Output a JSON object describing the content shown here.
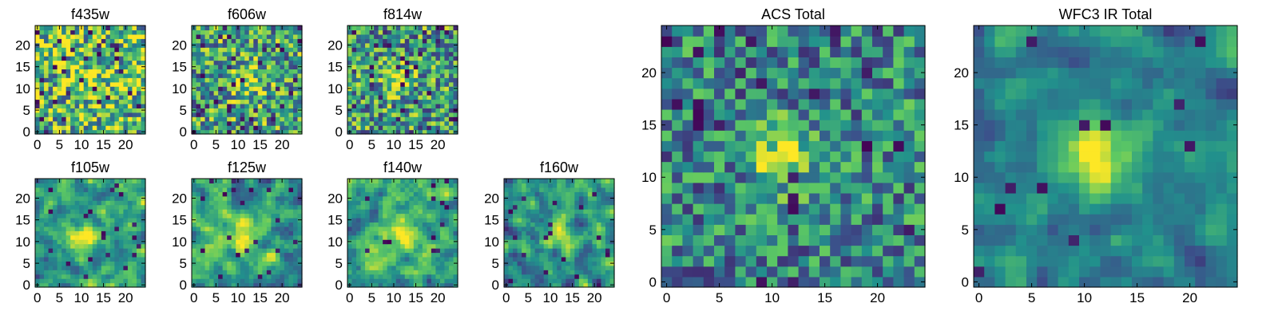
{
  "colormap": [
    "#440154",
    "#3b528b",
    "#21918c",
    "#5ec962",
    "#fde725"
  ],
  "chart_data": [
    {
      "type": "heatmap",
      "title": "f435w",
      "xlim": [
        0,
        24
      ],
      "ylim": [
        0,
        24
      ],
      "xticks": [
        "0",
        "5",
        "10",
        "15",
        "20"
      ],
      "yticks": [
        "0",
        "5",
        "10",
        "15",
        "20"
      ],
      "grid": false,
      "seed": 11,
      "noise": 0.45,
      "smooth": 0,
      "blob": {
        "x": 12,
        "y": 12,
        "sigma": 3.5,
        "amp": 0.15
      },
      "base": 0.68,
      "dark_fraction": 0.06
    },
    {
      "type": "heatmap",
      "title": "f606w",
      "xlim": [
        0,
        24
      ],
      "ylim": [
        0,
        24
      ],
      "xticks": [
        "0",
        "5",
        "10",
        "15",
        "20"
      ],
      "yticks": [
        "0",
        "5",
        "10",
        "15",
        "20"
      ],
      "grid": false,
      "seed": 23,
      "noise": 0.4,
      "smooth": 0,
      "blob": {
        "x": 12,
        "y": 12,
        "sigma": 2.4,
        "amp": 0.35
      },
      "base": 0.58,
      "dark_fraction": 0.05
    },
    {
      "type": "heatmap",
      "title": "f814w",
      "xlim": [
        0,
        24
      ],
      "ylim": [
        0,
        24
      ],
      "xticks": [
        "0",
        "5",
        "10",
        "15",
        "20"
      ],
      "yticks": [
        "0",
        "5",
        "10",
        "15",
        "20"
      ],
      "grid": false,
      "seed": 37,
      "noise": 0.4,
      "smooth": 0,
      "blob": {
        "x": 11,
        "y": 12,
        "sigma": 2.0,
        "amp": 0.45
      },
      "base": 0.55,
      "dark_fraction": 0.06
    },
    {
      "type": "heatmap",
      "title": "f105w",
      "xlim": [
        0,
        24
      ],
      "ylim": [
        0,
        24
      ],
      "xticks": [
        "0",
        "5",
        "10",
        "15",
        "20"
      ],
      "yticks": [
        "0",
        "5",
        "10",
        "15",
        "20"
      ],
      "grid": false,
      "seed": 41,
      "noise": 0.35,
      "smooth": 1,
      "blob": {
        "x": 11,
        "y": 11,
        "sigma": 2.6,
        "amp": 0.45
      },
      "base": 0.55,
      "dark_fraction": 0.03
    },
    {
      "type": "heatmap",
      "title": "f125w",
      "xlim": [
        0,
        24
      ],
      "ylim": [
        0,
        24
      ],
      "xticks": [
        "0",
        "5",
        "10",
        "15",
        "20"
      ],
      "yticks": [
        "0",
        "5",
        "10",
        "15",
        "20"
      ],
      "grid": false,
      "seed": 53,
      "noise": 0.35,
      "smooth": 1,
      "blob": {
        "x": 11,
        "y": 11,
        "sigma": 2.6,
        "amp": 0.4
      },
      "base": 0.57,
      "dark_fraction": 0.04
    },
    {
      "type": "heatmap",
      "title": "f140w",
      "xlim": [
        0,
        24
      ],
      "ylim": [
        0,
        24
      ],
      "xticks": [
        "0",
        "5",
        "10",
        "15",
        "20"
      ],
      "yticks": [
        "0",
        "5",
        "10",
        "15",
        "20"
      ],
      "grid": false,
      "seed": 67,
      "noise": 0.35,
      "smooth": 1,
      "blob": {
        "x": 11,
        "y": 12,
        "sigma": 3.0,
        "amp": 0.35
      },
      "base": 0.6,
      "dark_fraction": 0.02
    },
    {
      "type": "heatmap",
      "title": "f160w",
      "xlim": [
        0,
        24
      ],
      "ylim": [
        0,
        24
      ],
      "xticks": [
        "0",
        "5",
        "10",
        "15",
        "20"
      ],
      "yticks": [
        "0",
        "5",
        "10",
        "15",
        "20"
      ],
      "grid": false,
      "seed": 79,
      "noise": 0.38,
      "smooth": 1,
      "blob": {
        "x": 12,
        "y": 12,
        "sigma": 2.6,
        "amp": 0.4
      },
      "base": 0.52,
      "dark_fraction": 0.04
    },
    {
      "type": "heatmap",
      "title": "ACS Total",
      "xlim": [
        0,
        24
      ],
      "ylim": [
        0,
        24
      ],
      "xticks": [
        "0",
        "5",
        "10",
        "15",
        "20"
      ],
      "yticks": [
        "0",
        "5",
        "10",
        "15",
        "20"
      ],
      "grid": false,
      "seed": 97,
      "noise": 0.32,
      "smooth": 0,
      "blob": {
        "x": 11,
        "y": 12,
        "sigma": 2.0,
        "amp": 0.5
      },
      "base": 0.46,
      "dark_fraction": 0.04
    },
    {
      "type": "heatmap",
      "title": "WFC3 IR Total",
      "xlim": [
        0,
        24
      ],
      "ylim": [
        0,
        24
      ],
      "xticks": [
        "0",
        "5",
        "10",
        "15",
        "20"
      ],
      "yticks": [
        "0",
        "5",
        "10",
        "15",
        "20"
      ],
      "grid": false,
      "seed": 113,
      "noise": 0.25,
      "smooth": 1,
      "blob": {
        "x": 11,
        "y": 12,
        "sigma": 2.4,
        "amp": 0.55
      },
      "base": 0.44,
      "dark_fraction": 0.02
    }
  ]
}
